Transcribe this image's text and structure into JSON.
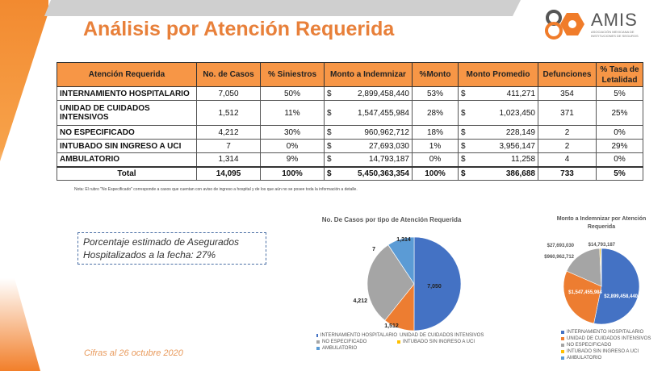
{
  "title": "Análisis por Atención Requerida",
  "logo": {
    "name": "AMIS",
    "subtitle": "ASOCIACIÓN MEXICANA DE INSTITUCIONES DE SEGUROS",
    "years": "AÑOS"
  },
  "table": {
    "headers": [
      "Atención Requerida",
      "No. de Casos",
      "% Siniestros",
      "Monto a Indemnizar",
      "%Monto",
      "Monto Promedio",
      "Defunciones",
      "% Tasa de Letalidad"
    ],
    "currency": "$",
    "rows": [
      {
        "label": "INTERNAMIENTO HOSPITALARIO",
        "casos": "7,050",
        "siniestros": "50%",
        "monto": "2,899,458,440",
        "pmonto": "53%",
        "promedio": "411,271",
        "defunciones": "354",
        "letalidad": "5%"
      },
      {
        "label": "UNIDAD DE CUIDADOS INTENSIVOS",
        "casos": "1,512",
        "siniestros": "11%",
        "monto": "1,547,455,984",
        "pmonto": "28%",
        "promedio": "1,023,450",
        "defunciones": "371",
        "letalidad": "25%"
      },
      {
        "label": "NO ESPECIFICADO",
        "casos": "4,212",
        "siniestros": "30%",
        "monto": "960,962,712",
        "pmonto": "18%",
        "promedio": "228,149",
        "defunciones": "2",
        "letalidad": "0%"
      },
      {
        "label": "INTUBADO SIN INGRESO A UCI",
        "casos": "7",
        "siniestros": "0%",
        "monto": "27,693,030",
        "pmonto": "1%",
        "promedio": "3,956,147",
        "defunciones": "2",
        "letalidad": "29%"
      },
      {
        "label": "AMBULATORIO",
        "casos": "1,314",
        "siniestros": "9%",
        "monto": "14,793,187",
        "pmonto": "0%",
        "promedio": "11,258",
        "defunciones": "4",
        "letalidad": "0%"
      }
    ],
    "total": {
      "label": "Total",
      "casos": "14,095",
      "siniestros": "100%",
      "monto": "5,450,363,354",
      "pmonto": "100%",
      "promedio": "386,688",
      "defunciones": "733",
      "letalidad": "5%"
    }
  },
  "note": "Nota: El rubro \"No Especificado\" corresponde a casos que cuentan con aviso de ingreso a hospital y de los que aún no se posee toda la información a detalle.",
  "callout": {
    "line1": "Porcentaje estimado de Asegurados",
    "line2": "Hospitalizados a la fecha: 27%"
  },
  "footer": "Cifras al 26 octubre 2020",
  "chart_data": [
    {
      "type": "pie",
      "title": "No. De Casos por tipo de Atención Requerida",
      "categories": [
        "INTERNAMIENTO HOSPITALARIO",
        "UNIDAD DE CUIDADOS INTENSIVOS",
        "NO ESPECIFICADO",
        "INTUBADO SIN INGRESO A UCI",
        "AMBULATORIO"
      ],
      "values": [
        7050,
        1512,
        4212,
        7,
        1314
      ],
      "labels": [
        "7,050",
        "1,512",
        "4,212",
        "7",
        "1,314"
      ],
      "colors": [
        "#4472c4",
        "#ed7d31",
        "#a5a5a5",
        "#ffc000",
        "#5b9bd5"
      ]
    },
    {
      "type": "pie",
      "title": "Monto a Indemnizar por Atención Requerida",
      "categories": [
        "INTERNAMIENTO HOSPITALARIO",
        "UNIDAD DE CUIDADOS INTENSIVOS",
        "NO ESPECIFICADO",
        "INTUBADO SIN INGRESO A UCI",
        "AMBULATORIO"
      ],
      "values": [
        2899458440,
        1547455984,
        960962712,
        27693030,
        14793187
      ],
      "labels": [
        "$2,899,458,440",
        "$1,547,455,984",
        "$960,962,712",
        "$27,693,030",
        "$14,793,187"
      ],
      "colors": [
        "#4472c4",
        "#ed7d31",
        "#a5a5a5",
        "#ffc000",
        "#5b9bd5"
      ]
    }
  ]
}
